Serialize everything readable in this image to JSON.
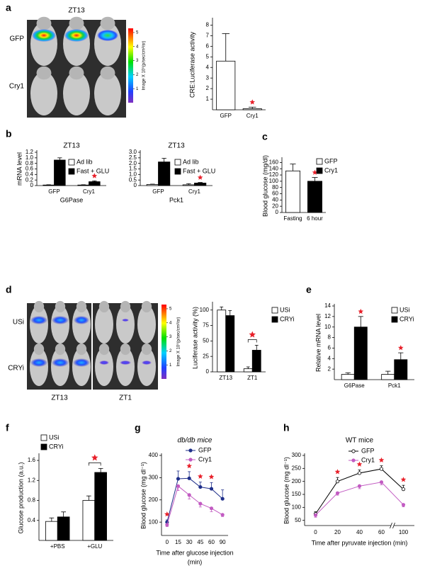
{
  "images": [
    {
      "panel": "a",
      "title": "ZT13",
      "rows": [
        "GFP",
        "Cry1"
      ],
      "colorbar_ticks": [
        1,
        2,
        3,
        4,
        5
      ],
      "colorbar_label": "Image X 10⁵(p/sec/cm²/sr)"
    },
    {
      "panel": "d",
      "rows": [
        "USi",
        "CRYi"
      ],
      "columns": [
        "ZT13",
        "ZT1"
      ],
      "colorbar_ticks": [
        1,
        2,
        3,
        4,
        5
      ],
      "colorbar_label": "Image X 10⁵(p/sec/cm²/sr)"
    }
  ],
  "chart_data": [
    {
      "type": "bar",
      "ylabel": "CRE:Luciferase activity",
      "categories": [
        "GFP",
        "Cry1"
      ],
      "series": [
        {
          "color": "#ffffff",
          "values": [
            4.6,
            0.1
          ],
          "errors": [
            2.6,
            0.15
          ],
          "significant": [
            false,
            true
          ]
        }
      ],
      "ylim": [
        0,
        8.5
      ],
      "yticks": [
        1,
        2,
        3,
        4,
        5,
        6,
        7,
        8
      ]
    },
    {
      "type": "bar",
      "panel": "b",
      "title": "ZT13",
      "ylabel": "mRNA level",
      "xlabel": "G6Pase",
      "categories": [
        "GFP",
        "Cry1"
      ],
      "series": [
        {
          "name": "Ad lib",
          "color": "#ffffff",
          "values": [
            0.02,
            0.02
          ],
          "errors": [
            0.01,
            0.01
          ],
          "significant": [
            false,
            false
          ]
        },
        {
          "name": "Fast + GLU",
          "color": "#000000",
          "values": [
            0.92,
            0.14
          ],
          "errors": [
            0.08,
            0.03
          ],
          "significant": [
            false,
            true
          ]
        }
      ],
      "ylim": [
        0,
        1.2
      ],
      "yticks": [
        0,
        0.2,
        0.4,
        0.6,
        0.8,
        {
          "value": 1,
          "label": "1.0"
        },
        1.2
      ]
    },
    {
      "type": "bar",
      "title": "ZT13",
      "xlabel": "Pck1",
      "categories": [
        "GFP",
        "Cry1"
      ],
      "series": [
        {
          "name": "Ad lib",
          "color": "#ffffff",
          "values": [
            0.1,
            0.07
          ],
          "errors": [
            0.03,
            0.1
          ],
          "significant": [
            false,
            false
          ]
        },
        {
          "name": "Fast + GLU",
          "color": "#000000",
          "values": [
            2.13,
            0.23
          ],
          "errors": [
            0.33,
            0.05
          ],
          "significant": [
            false,
            true
          ]
        }
      ],
      "ylim": [
        0,
        3
      ],
      "yticks": [
        0,
        0.5,
        {
          "value": 1,
          "label": "1.0"
        },
        1.5,
        {
          "value": 2,
          "label": "2.0"
        },
        2.5,
        {
          "value": 3,
          "label": "3.0"
        }
      ]
    },
    {
      "type": "bar",
      "panel": "c",
      "ylabel": "Blood glucose (mg/dl)",
      "categories": [
        "Fasting",
        "6 hour"
      ],
      "series": [
        {
          "name": "GFP",
          "color": "#ffffff",
          "values": [
            133,
            null
          ],
          "errors": [
            22,
            null
          ]
        },
        {
          "name": "Cry1",
          "color": "#000000",
          "values": [
            null,
            100
          ],
          "errors": [
            null,
            12
          ],
          "significant": [
            false,
            true
          ]
        }
      ],
      "ylim": [
        0,
        170
      ],
      "yticks": [
        0,
        20,
        40,
        60,
        80,
        100,
        120,
        140,
        160
      ]
    },
    {
      "type": "bar",
      "ylabel": "Luciferase activity (%)",
      "categories": [
        "ZT13",
        "ZT1"
      ],
      "series": [
        {
          "name": "USi",
          "color": "#ffffff",
          "values": [
            100,
            5
          ],
          "errors": [
            5,
            3
          ]
        },
        {
          "name": "CRYi",
          "color": "#000000",
          "values": [
            91,
            35
          ],
          "errors": [
            8,
            8
          ]
        }
      ],
      "bracket_categories": [
        "ZT1"
      ],
      "ylim": [
        0,
        110
      ],
      "yticks": [
        0,
        25,
        50,
        75,
        100
      ]
    },
    {
      "type": "bar",
      "panel": "e",
      "ylabel": "Relative mRNA level",
      "categories": [
        "G6Pase",
        "Pck1"
      ],
      "series": [
        {
          "name": "USi",
          "color": "#ffffff",
          "values": [
            1,
            1
          ],
          "errors": [
            0.3,
            0.6
          ]
        },
        {
          "name": "CRYi",
          "color": "#000000",
          "values": [
            10,
            3.8
          ],
          "errors": [
            2,
            1.3
          ],
          "significant": [
            true,
            true
          ]
        }
      ],
      "ylim": [
        0,
        14
      ],
      "yticks": [
        2,
        4,
        6,
        8,
        10,
        12,
        14
      ]
    },
    {
      "type": "bar",
      "panel": "f",
      "ylabel": "Glucose production (a.u.)",
      "categories": [
        "+PBS",
        "+GLU"
      ],
      "series": [
        {
          "name": "USi",
          "color": "#ffffff",
          "values": [
            0.38,
            0.8
          ],
          "errors": [
            0.07,
            0.09
          ]
        },
        {
          "name": "CRYi",
          "color": "#000000",
          "values": [
            0.47,
            1.36
          ],
          "errors": [
            0.1,
            0.08
          ]
        }
      ],
      "bracket_categories": [
        "+GLU"
      ],
      "ylim": [
        0,
        1.7
      ],
      "yticks": [
        0.4,
        0.8,
        1.2,
        1.6
      ]
    },
    {
      "type": "line",
      "panel": "g",
      "title": "db/db mice",
      "title_style": "italic",
      "ylabel": "Blood glucose (mg dl⁻¹)",
      "xlabel": [
        "Time after glucose injection",
        "(min)"
      ],
      "categories": [
        "0",
        "15",
        "30",
        "45",
        "60",
        "90"
      ],
      "series": [
        {
          "name": "GFP",
          "color": "#1f2f8a",
          "marker_fill": "#1f2f8a",
          "values": [
            100,
            295,
            297,
            258,
            250,
            205
          ],
          "errors": [
            10,
            35,
            30,
            22,
            28,
            40
          ],
          "error_direction": "up"
        },
        {
          "name": "Cry1",
          "color": "#c25bc2",
          "marker_fill": "#c25bc2",
          "values": [
            88,
            262,
            222,
            183,
            162,
            133
          ],
          "errors": [
            8,
            20,
            18,
            15,
            15,
            8
          ],
          "error_direction": "down"
        }
      ],
      "significant": [
        true,
        false,
        true,
        true,
        true,
        false
      ],
      "ylim": [
        40,
        400
      ],
      "yticks": [
        100,
        200,
        300,
        400
      ]
    },
    {
      "type": "line",
      "panel": "h",
      "title": "WT mice",
      "ylabel": "Blood glucose (mg dl⁻¹)",
      "xlabel": [
        "Time after pyruvate injection (min)"
      ],
      "categories": [
        "0",
        "20",
        "40",
        "60",
        "100"
      ],
      "series": [
        {
          "name": "GFP",
          "color": "#000000",
          "marker_fill": "#ffffff",
          "values": [
            75,
            200,
            232,
            248,
            170
          ],
          "errors": [
            8,
            15,
            12,
            12,
            15
          ],
          "error_direction": "up"
        },
        {
          "name": "Cry1",
          "color": "#c25bc2",
          "marker_fill": "#c25bc2",
          "values": [
            70,
            155,
            182,
            197,
            110
          ],
          "errors": [
            8,
            8,
            10,
            10,
            8
          ],
          "error_direction": "down"
        }
      ],
      "significant": [
        false,
        true,
        true,
        true,
        true
      ],
      "axis_break": true,
      "ylim": [
        30,
        300
      ],
      "yticks": [
        50,
        100,
        150,
        200,
        250,
        300
      ]
    }
  ]
}
